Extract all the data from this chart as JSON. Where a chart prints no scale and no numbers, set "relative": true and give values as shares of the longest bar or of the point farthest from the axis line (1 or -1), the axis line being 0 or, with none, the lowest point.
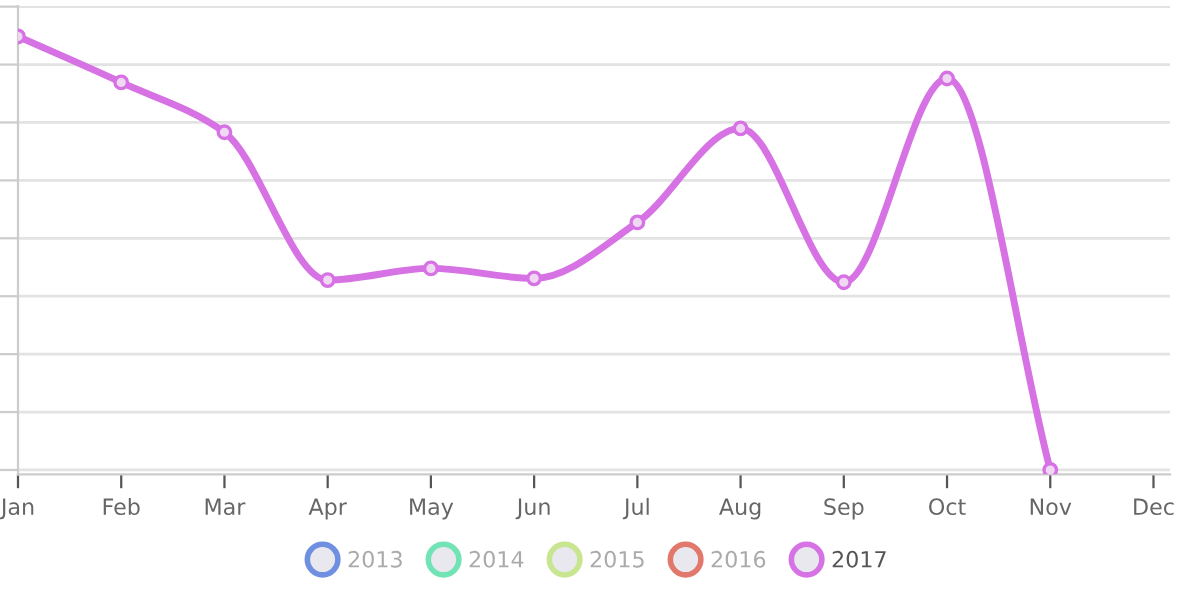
{
  "chart_data": {
    "type": "line",
    "relative": true,
    "categories": [
      "Jan",
      "Feb",
      "Mar",
      "Apr",
      "May",
      "Jun",
      "Jul",
      "Aug",
      "Sep",
      "Oct",
      "Nov",
      "Dec"
    ],
    "series": [
      {
        "name": "2013",
        "color": "#6f8fe0",
        "values": [
          null,
          null,
          null,
          null,
          null,
          null,
          null,
          null,
          null,
          null,
          null,
          null
        ]
      },
      {
        "name": "2014",
        "color": "#72e3b4",
        "values": [
          null,
          null,
          null,
          null,
          null,
          null,
          null,
          null,
          null,
          null,
          null,
          null
        ]
      },
      {
        "name": "2015",
        "color": "#c8e690",
        "values": [
          null,
          null,
          null,
          null,
          null,
          null,
          null,
          null,
          null,
          null,
          null,
          null
        ]
      },
      {
        "name": "2016",
        "color": "#e2786c",
        "values": [
          null,
          null,
          null,
          null,
          null,
          null,
          null,
          null,
          null,
          null,
          null,
          null
        ]
      },
      {
        "name": "2017",
        "color": "#d672e4",
        "values": [
          1,
          0.894,
          0.779,
          0.438,
          0.465,
          0.442,
          0.571,
          0.788,
          0.433,
          0.903,
          0.0,
          null
        ]
      }
    ],
    "grid": "y",
    "legend": "bottom",
    "marker": "circle",
    "line_style": "solid",
    "tick_labels": "x"
  }
}
